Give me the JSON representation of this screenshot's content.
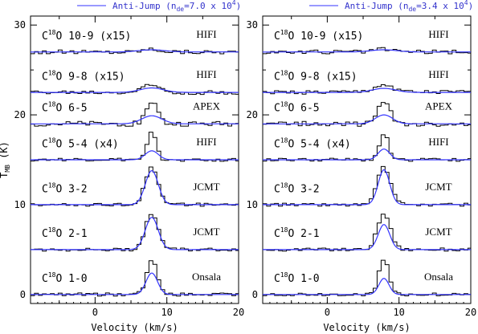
{
  "chart_data": [
    {
      "type": "line",
      "legend": {
        "label_main": "Anti-Jump (n",
        "label_sub": "de",
        "label_end": "=7.0 x 10",
        "label_sup": "4",
        "label_close": ")",
        "color": "#3333ff"
      },
      "xlabel": "Velocity (km/s)",
      "ylabel": "T",
      "ylabel_sub": "MB",
      "ylabel_unit": " (K)",
      "xlim": [
        -9,
        20
      ],
      "ylim": [
        -1,
        31
      ],
      "xticks": [
        "0",
        "10",
        "20"
      ],
      "yticks": [
        "0",
        "10",
        "20",
        "30"
      ],
      "v0": 7.9,
      "panels": [
        {
          "mol": "C",
          "iso": "18",
          "rest": "O 10-9 (x15)",
          "tel": "HIFI",
          "offset": 27.0,
          "obs_amp": 0.3,
          "obs_width": 1.5,
          "model_amp": 0.25,
          "model_width": 1.8
        },
        {
          "mol": "C",
          "iso": "18",
          "rest": "O 9-8 (x15)",
          "tel": "HIFI",
          "offset": 22.5,
          "obs_amp": 0.8,
          "obs_width": 1.4,
          "model_amp": 0.5,
          "model_width": 1.6
        },
        {
          "mol": "C",
          "iso": "18",
          "rest": "O 6-5",
          "tel": "APEX",
          "offset": 19.0,
          "obs_amp": 2.5,
          "obs_width": 0.8,
          "model_amp": 0.9,
          "model_width": 1.4
        },
        {
          "mol": "C",
          "iso": "18",
          "rest": "O 5-4 (x4)",
          "tel": "HIFI",
          "offset": 15.0,
          "obs_amp": 3.0,
          "obs_width": 0.6,
          "model_amp": 1.0,
          "model_width": 0.9
        },
        {
          "mol": "C",
          "iso": "18",
          "rest": "O 3-2",
          "tel": "JCMT",
          "offset": 10.0,
          "obs_amp": 4.2,
          "obs_width": 0.9,
          "model_amp": 3.8,
          "model_width": 0.9
        },
        {
          "mol": "C",
          "iso": "18",
          "rest": "O 2-1",
          "tel": "JCMT",
          "offset": 5.0,
          "obs_amp": 4.0,
          "obs_width": 0.9,
          "model_amp": 3.6,
          "model_width": 0.9
        },
        {
          "mol": "C",
          "iso": "18",
          "rest": "O 1-0",
          "tel": "Onsala",
          "offset": 0.0,
          "obs_amp": 4.0,
          "obs_width": 0.7,
          "model_amp": 2.4,
          "model_width": 0.8
        }
      ]
    },
    {
      "type": "line",
      "legend": {
        "label_main": "Anti-Jump (n",
        "label_sub": "de",
        "label_end": "=3.4 x 10",
        "label_sup": "4",
        "label_close": ")",
        "color": "#3333ff"
      },
      "xlabel": "Velocity (km/s)",
      "ylabel": "",
      "xlim": [
        -9,
        20
      ],
      "ylim": [
        -1,
        31
      ],
      "xticks": [
        "0",
        "10",
        "20"
      ],
      "yticks": [
        "0",
        "10",
        "20",
        "30"
      ],
      "v0": 7.9,
      "panels": [
        {
          "mol": "C",
          "iso": "18",
          "rest": "O 10-9 (x15)",
          "tel": "HIFI",
          "offset": 27.0,
          "obs_amp": 0.3,
          "obs_width": 1.5,
          "model_amp": 0.25,
          "model_width": 1.8
        },
        {
          "mol": "C",
          "iso": "18",
          "rest": "O 9-8 (x15)",
          "tel": "HIFI",
          "offset": 22.5,
          "obs_amp": 0.8,
          "obs_width": 1.4,
          "model_amp": 0.45,
          "model_width": 1.6
        },
        {
          "mol": "C",
          "iso": "18",
          "rest": "O 6-5",
          "tel": "APEX",
          "offset": 19.0,
          "obs_amp": 2.5,
          "obs_width": 0.8,
          "model_amp": 1.0,
          "model_width": 1.2
        },
        {
          "mol": "C",
          "iso": "18",
          "rest": "O 5-4 (x4)",
          "tel": "HIFI",
          "offset": 15.0,
          "obs_amp": 3.0,
          "obs_width": 0.6,
          "model_amp": 1.2,
          "model_width": 0.8
        },
        {
          "mol": "C",
          "iso": "18",
          "rest": "O 3-2",
          "tel": "JCMT",
          "offset": 10.0,
          "obs_amp": 4.2,
          "obs_width": 0.9,
          "model_amp": 3.9,
          "model_width": 0.8
        },
        {
          "mol": "C",
          "iso": "18",
          "rest": "O 2-1",
          "tel": "JCMT",
          "offset": 5.0,
          "obs_amp": 4.0,
          "obs_width": 0.9,
          "model_amp": 2.8,
          "model_width": 0.8
        },
        {
          "mol": "C",
          "iso": "18",
          "rest": "O 1-0",
          "tel": "Onsala",
          "offset": 0.0,
          "obs_amp": 4.0,
          "obs_width": 0.7,
          "model_amp": 1.8,
          "model_width": 0.7
        }
      ]
    }
  ]
}
